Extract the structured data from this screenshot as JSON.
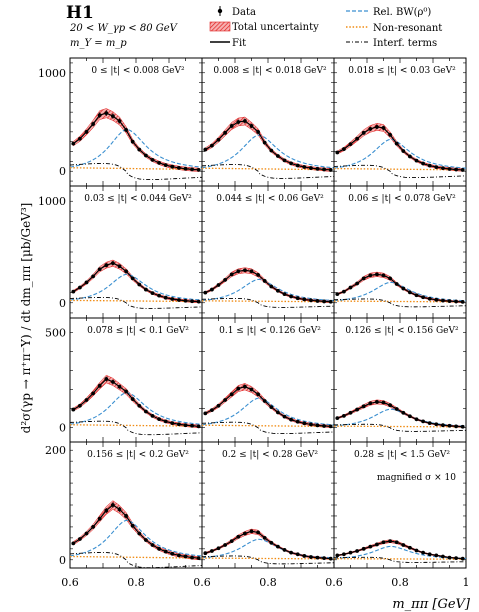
{
  "header": {
    "experiment": "H1",
    "line1": "20 < W_γp < 80 GeV",
    "line2": "m_Y = m_p"
  },
  "legend": [
    {
      "key": "data",
      "label": "Data",
      "style": "marker"
    },
    {
      "key": "total_unc",
      "label": "Total uncertainty",
      "style": "hatch"
    },
    {
      "key": "fit",
      "label": "Fit",
      "style": "solid"
    },
    {
      "key": "bw",
      "label": "Rel. BW(ρ⁰)",
      "style": "dashed"
    },
    {
      "key": "nonres",
      "label": "Non-resonant",
      "style": "dotted"
    },
    {
      "key": "interf",
      "label": "Interf. terms",
      "style": "dashdot"
    }
  ],
  "colors": {
    "data": "#000000",
    "total_unc": "#e02020",
    "fit": "#000000",
    "bw": "#3a8fd0",
    "nonres": "#f08a10",
    "interf": "#000000"
  },
  "axes": {
    "ylabel": "d²σ(γp → π⁺π⁻Y) / dt dm_ππ   [μb/GeV³]",
    "xlabel": "m_ππ [GeV]",
    "xticks": [
      "0.6",
      "0.8",
      "0.6",
      "0.8",
      "0.6",
      "0.8",
      "1"
    ],
    "row_ymax": [
      1000,
      1000,
      500,
      200
    ]
  },
  "chart_data": {
    "type": "scatter",
    "x_bins": [
      0.61,
      0.63,
      0.65,
      0.67,
      0.69,
      0.71,
      0.73,
      0.75,
      0.77,
      0.79,
      0.81,
      0.83,
      0.85,
      0.87,
      0.89,
      0.91,
      0.93,
      0.95,
      0.97,
      0.99
    ],
    "xlim": [
      0.6,
      1.0
    ],
    "note": "magnified σ × 10",
    "panels": [
      {
        "label": "0 ≤ |t| < 0.008 GeV²",
        "ylim": [
          -150,
          1150
        ],
        "ytick": [
          0,
          1000
        ],
        "values": [
          280,
          330,
          400,
          480,
          570,
          590,
          560,
          510,
          420,
          300,
          220,
          160,
          115,
          85,
          62,
          46,
          34,
          25,
          19,
          14
        ]
      },
      {
        "label": "0.008 ≤ |t| < 0.018 GeV²",
        "ylim": [
          -150,
          1150
        ],
        "ytick": [],
        "values": [
          220,
          260,
          320,
          390,
          460,
          500,
          510,
          460,
          400,
          290,
          210,
          155,
          110,
          80,
          58,
          43,
          32,
          24,
          18,
          13
        ]
      },
      {
        "label": "0.018 ≤ |t| < 0.03 GeV²",
        "ylim": [
          -150,
          1150
        ],
        "ytick": [],
        "values": [
          190,
          225,
          275,
          330,
          390,
          430,
          450,
          440,
          370,
          280,
          205,
          150,
          108,
          78,
          57,
          42,
          31,
          23,
          17,
          13
        ]
      },
      {
        "label": "0.03 ≤ |t| < 0.044 GeV²",
        "ylim": [
          -150,
          1150
        ],
        "ytick": [
          0,
          1000
        ],
        "values": [
          110,
          150,
          200,
          260,
          330,
          370,
          390,
          360,
          310,
          240,
          180,
          130,
          95,
          70,
          50,
          37,
          27,
          20,
          15,
          11
        ]
      },
      {
        "label": "0.044 ≤ |t| < 0.06 GeV²",
        "ylim": [
          -150,
          1150
        ],
        "ytick": [],
        "values": [
          100,
          130,
          175,
          225,
          280,
          310,
          320,
          310,
          275,
          215,
          160,
          118,
          85,
          62,
          45,
          33,
          24,
          18,
          13,
          10
        ]
      },
      {
        "label": "0.06 ≤ |t| < 0.078 GeV²",
        "ylim": [
          -150,
          1150
        ],
        "ytick": [],
        "values": [
          85,
          110,
          150,
          190,
          240,
          270,
          280,
          270,
          240,
          185,
          140,
          102,
          74,
          54,
          39,
          29,
          21,
          16,
          12,
          9
        ]
      },
      {
        "label": "0.078 ≤ |t| < 0.1 GeV²",
        "ylim": [
          -75,
          575
        ],
        "ytick": [
          0,
          500
        ],
        "values": [
          95,
          115,
          145,
          180,
          220,
          255,
          240,
          215,
          190,
          150,
          115,
          85,
          62,
          45,
          33,
          24,
          18,
          13,
          10,
          7
        ]
      },
      {
        "label": "0.1 ≤ |t| < 0.126 GeV²",
        "ylim": [
          -75,
          575
        ],
        "ytick": [],
        "values": [
          75,
          92,
          115,
          145,
          175,
          205,
          215,
          200,
          175,
          140,
          108,
          80,
          58,
          42,
          31,
          23,
          17,
          12,
          9,
          7
        ]
      },
      {
        "label": "0.126 ≤ |t| < 0.156 GeV²",
        "ylim": [
          -75,
          575
        ],
        "ytick": [],
        "values": [
          50,
          62,
          78,
          95,
          112,
          128,
          135,
          132,
          118,
          98,
          78,
          60,
          44,
          33,
          24,
          18,
          13,
          10,
          7,
          5
        ]
      },
      {
        "label": "0.156 ≤ |t| < 0.2 GeV²",
        "ylim": [
          -15,
          215
        ],
        "ytick": [
          0,
          200
        ],
        "values": [
          30,
          38,
          48,
          60,
          75,
          90,
          100,
          92,
          80,
          62,
          48,
          36,
          27,
          20,
          15,
          11,
          8,
          6,
          4,
          3
        ]
      },
      {
        "label": "0.2 ≤ |t| < 0.28 GeV²",
        "ylim": [
          -15,
          215
        ],
        "ytick": [],
        "values": [
          12,
          16,
          21,
          27,
          34,
          42,
          48,
          52,
          50,
          40,
          31,
          24,
          18,
          13,
          10,
          7,
          5,
          4,
          3,
          2
        ]
      },
      {
        "label": "0.28 ≤ |t| < 1.5 GeV²",
        "ylim": [
          -15,
          215
        ],
        "ytick": [],
        "values": [
          8,
          10,
          13,
          16,
          20,
          24,
          28,
          32,
          34,
          32,
          27,
          22,
          17,
          13,
          10,
          8,
          6,
          4,
          3,
          2
        ]
      }
    ]
  }
}
